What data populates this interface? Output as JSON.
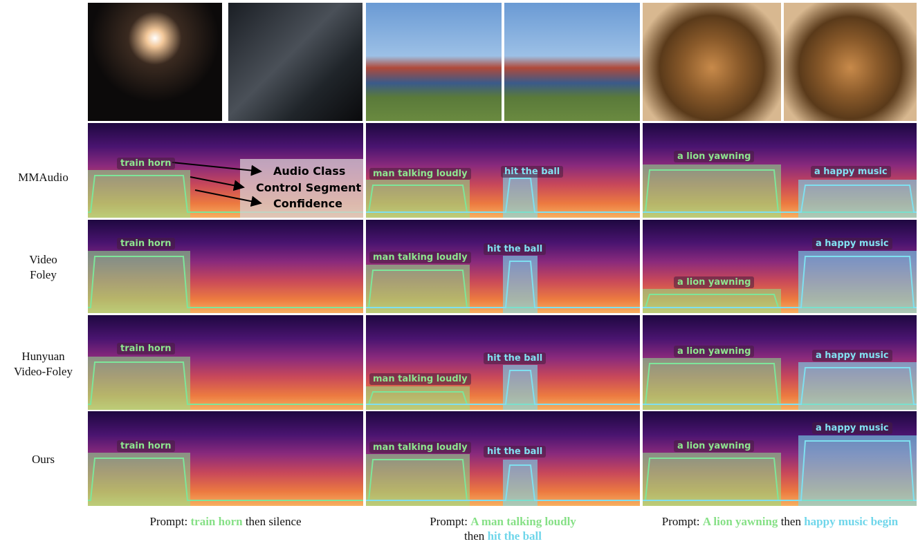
{
  "rows": [
    {
      "label": [
        "MMAudio"
      ]
    },
    {
      "label": [
        "Video",
        "Foley"
      ]
    },
    {
      "label": [
        "Hunyuan",
        "Video-Foley"
      ]
    },
    {
      "label": [
        "Ours"
      ]
    }
  ],
  "panel_labels": [
    [
      [
        "train horn"
      ],
      [
        "man talking loudly",
        "hit the ball"
      ],
      [
        "a lion yawning",
        "a happy music"
      ]
    ],
    [
      [
        "train horn"
      ],
      [
        "man talking loudly",
        "hit the ball"
      ],
      [
        "a lion yawning",
        "a happy music"
      ]
    ],
    [
      [
        "train horn"
      ],
      [
        "man talking loudly",
        "hit the ball"
      ],
      [
        "a lion yawning",
        "a happy music"
      ]
    ],
    [
      [
        "train horn"
      ],
      [
        "man talking loudly",
        "hit the ball"
      ],
      [
        "a lion yawning",
        "a happy music"
      ]
    ]
  ],
  "annotations": [
    "Audio Class",
    "Control Segment",
    "Confidence"
  ],
  "prompts": [
    {
      "prefix": "Prompt:",
      "first": "train horn",
      "middle": "then silence"
    },
    {
      "prefix": "Prompt:",
      "first": "A man talking loudly",
      "middle": "then",
      "second": "hit the ball"
    },
    {
      "prefix": "Prompt:",
      "first": "A lion yawning",
      "middle": "then",
      "second": "happy music begin"
    }
  ]
}
